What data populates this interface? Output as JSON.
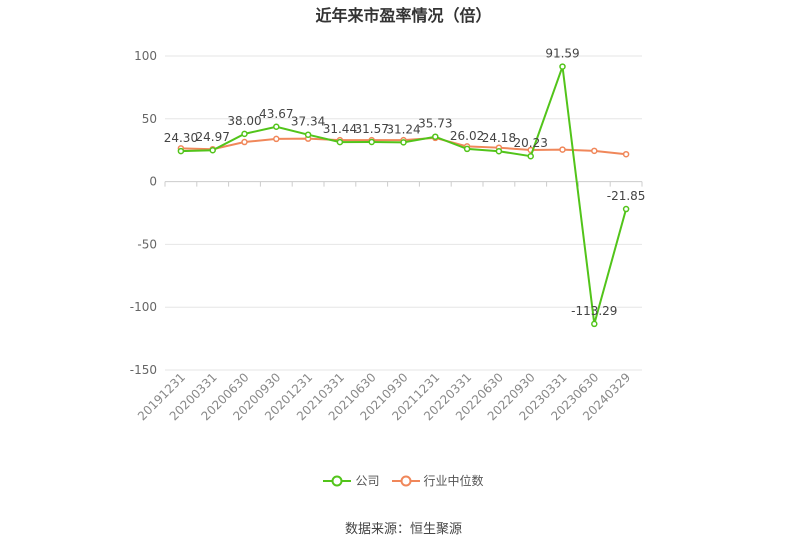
{
  "chart_data": {
    "type": "line",
    "title": "近年来市盈率情况（倍）",
    "categories": [
      "20191231",
      "20200331",
      "20200630",
      "20200930",
      "20201231",
      "20210331",
      "20210630",
      "20210930",
      "20211231",
      "20220331",
      "20220630",
      "20220930",
      "20230331",
      "20230630",
      "20240329"
    ],
    "y_ticks": [
      "100",
      "50",
      "0",
      "-50",
      "-100",
      "-150"
    ],
    "ylim": [
      -150,
      100
    ],
    "grid": true,
    "legend_position": "bottom",
    "series": [
      {
        "name": "公司",
        "color": "#52c41a",
        "values": [
          24.3,
          24.97,
          38.0,
          43.67,
          37.34,
          31.44,
          31.57,
          31.24,
          35.73,
          26.02,
          24.18,
          20.23,
          91.59,
          -113.29,
          -21.85
        ],
        "labels": [
          "24.30",
          "24.97",
          "38.00",
          "43.67",
          "37.34",
          "31.44",
          "31.57",
          "31.24",
          "35.73",
          "26.02",
          "24.18",
          "20.23",
          "91.59",
          "-113.29",
          "-21.85"
        ]
      },
      {
        "name": "行业中位数",
        "color": "#f0875a",
        "values": [
          26.5,
          25.8,
          31.5,
          34.0,
          34.2,
          33.0,
          33.0,
          33.0,
          34.8,
          28.0,
          27.0,
          25.2,
          25.5,
          24.5,
          21.8
        ]
      }
    ]
  },
  "source": "数据来源：恒生聚源"
}
